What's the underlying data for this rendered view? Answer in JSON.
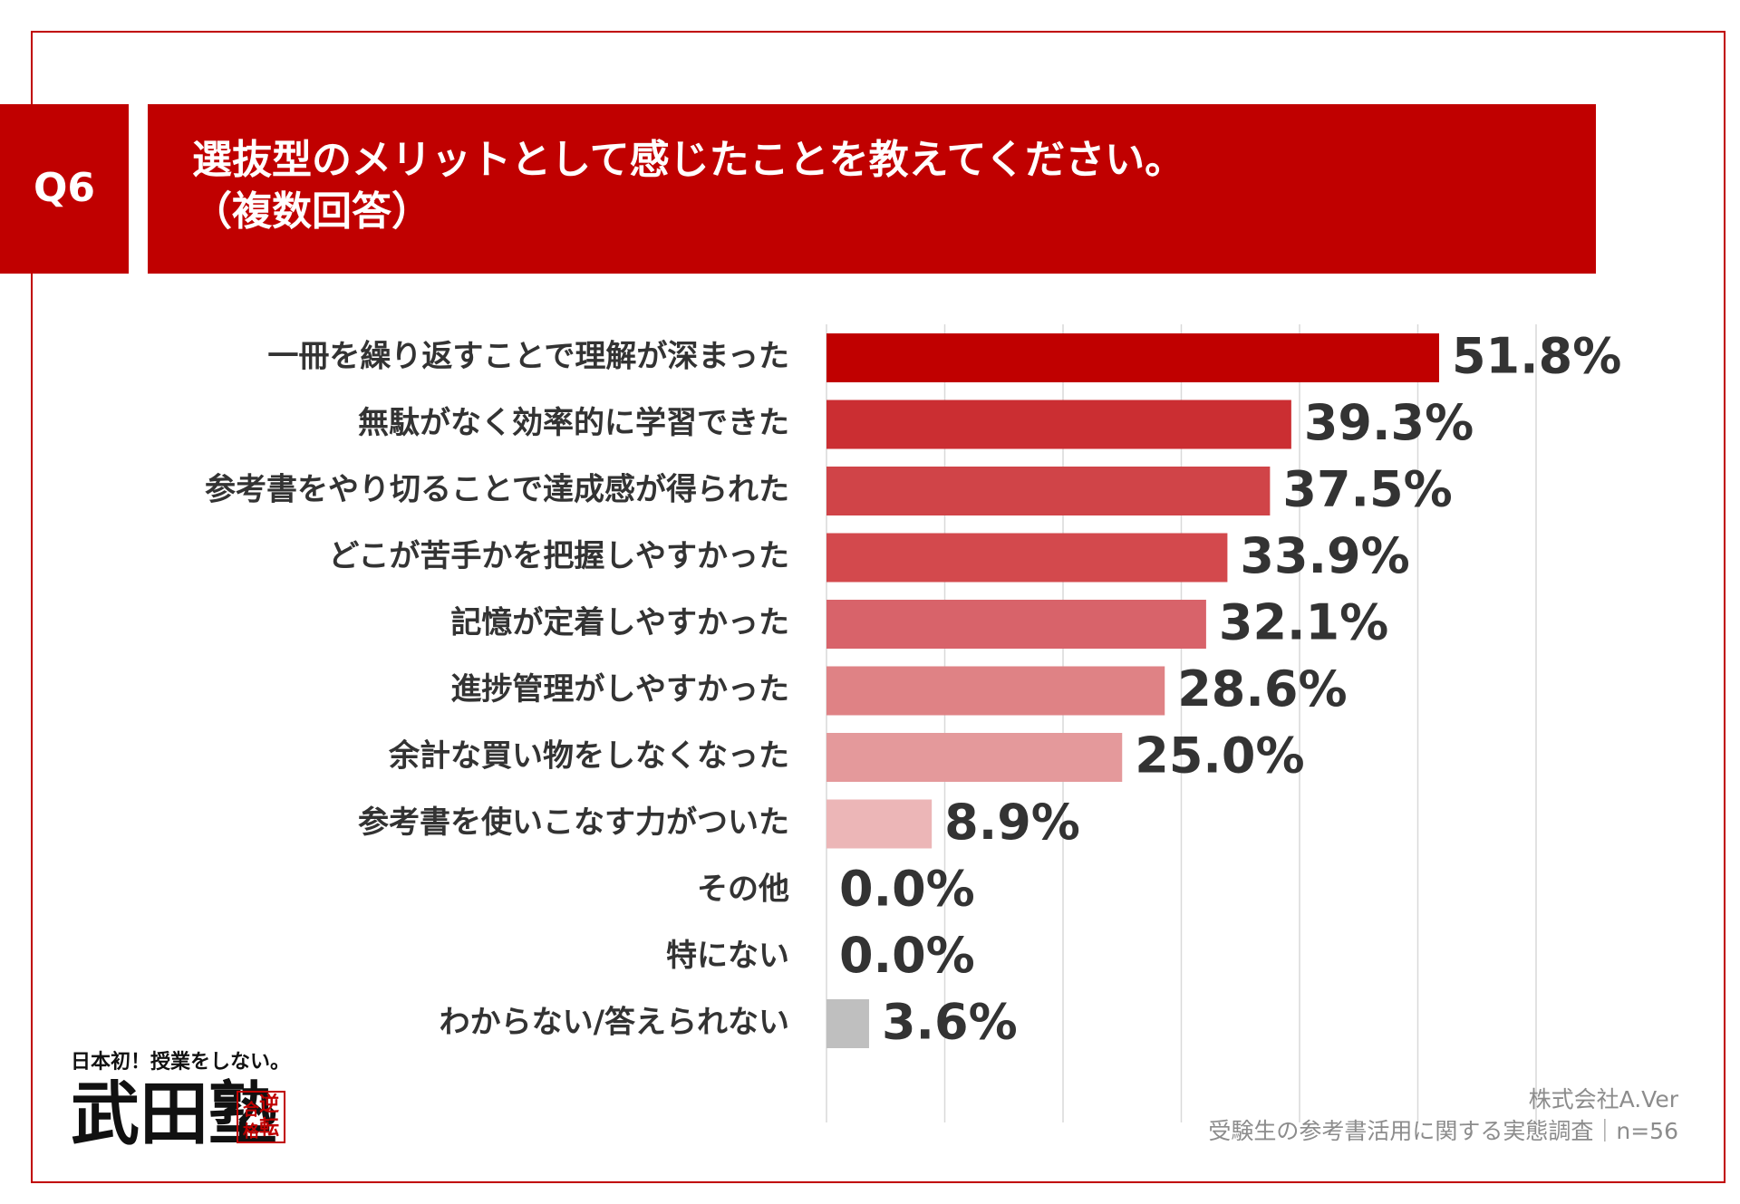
{
  "chart_data": {
    "type": "barh",
    "question": "Q6",
    "title": "選抜型のメリットとして感じたことを教えてください。",
    "subtitle": "（複数回答）",
    "categories": [
      "一冊を繰り返すことで理解が深まった",
      "無駄がなく効率的に学習できた",
      "参考書をやり切ることで達成感が得られた",
      "どこが苦手かを把握しやすかった",
      "記憶が定着しやすかった",
      "進捗管理がしやすかった",
      "余計な買い物をしなくなった",
      "参考書を使いこなす力がついた",
      "その他",
      "特にない",
      "わからない/答えられない"
    ],
    "values": [
      51.8,
      39.3,
      37.5,
      33.9,
      32.1,
      28.6,
      25.0,
      8.9,
      0.0,
      0.0,
      3.6
    ],
    "value_labels": [
      "51.8%",
      "39.3%",
      "37.5%",
      "33.9%",
      "32.1%",
      "28.6%",
      "25.0%",
      "8.9%",
      "0.0%",
      "0.0%",
      "3.6%"
    ],
    "colors": [
      "#c00000",
      "#cb2e32",
      "#d04448",
      "#d3494d",
      "#d8636a",
      "#df8285",
      "#e4999b",
      "#ecb6b7",
      "#ecb6b7",
      "#ecb6b7",
      "#bfbfbf"
    ],
    "xlim": [
      0,
      60
    ],
    "xticks": [
      0,
      10,
      20,
      30,
      40,
      50,
      60
    ],
    "grid": true,
    "source": [
      "株式会社A.Ver",
      "受験生の参考書活用に関する実態調査｜n=56"
    ],
    "logo": {
      "tagline": "日本初！授業をしない。",
      "name": "武田塾",
      "badge": [
        "逆",
        "転",
        "合",
        "格"
      ]
    }
  }
}
